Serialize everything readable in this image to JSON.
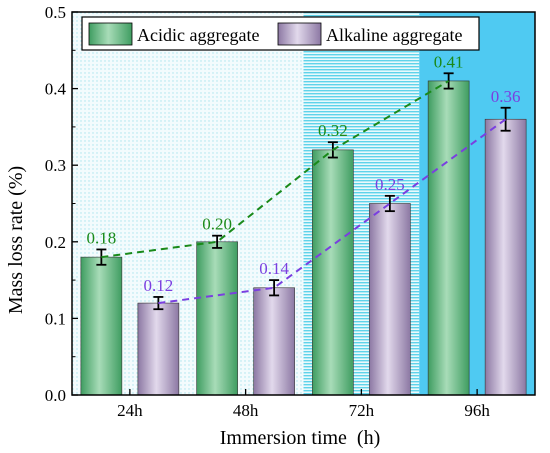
{
  "chart_data": {
    "type": "bar",
    "title": "",
    "xlabel": "Immersion time  (h)",
    "ylabel": "Mass loss rate (%)",
    "ylim": [
      0,
      0.5
    ],
    "yticks": [
      "0.0",
      "0.1",
      "0.2",
      "0.3",
      "0.4",
      "0.5"
    ],
    "categories": [
      "24h",
      "48h",
      "72h",
      "96h"
    ],
    "legend_position": "top",
    "grid": false,
    "series": [
      {
        "name": "Acidic aggregate",
        "values": [
          0.18,
          0.2,
          0.32,
          0.41
        ],
        "errors": [
          0.01,
          0.008,
          0.01,
          0.01
        ],
        "labels": [
          "0.18",
          "0.20",
          "0.32",
          "0.41"
        ],
        "color": "#6fbf8a",
        "trend_color": "#1a8a1a"
      },
      {
        "name": "Alkaline aggregate",
        "values": [
          0.12,
          0.14,
          0.25,
          0.36
        ],
        "errors": [
          0.008,
          0.01,
          0.01,
          0.015
        ],
        "labels": [
          "0.12",
          "0.14",
          "0.25",
          "0.36"
        ],
        "color": "#b8a7c8",
        "trend_color": "#7a3fe0"
      }
    ],
    "background_bands": [
      "#eaf8fb",
      "#eaf8fb",
      "#8fe0ef",
      "#4fcaf2"
    ]
  }
}
